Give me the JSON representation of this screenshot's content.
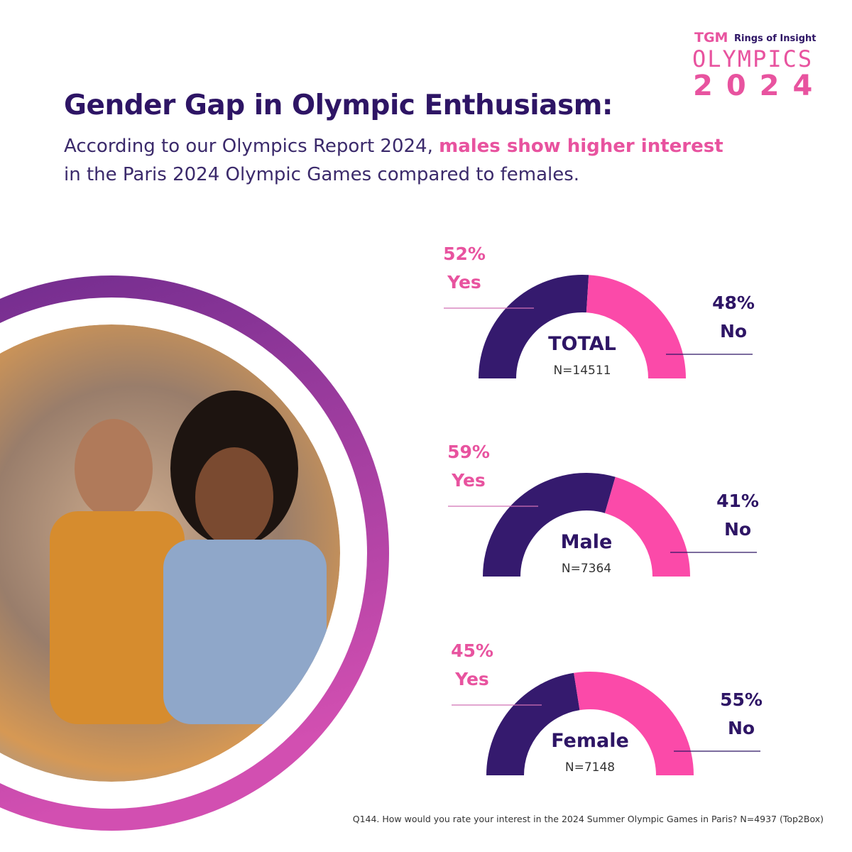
{
  "logo": {
    "brand": "TGM",
    "tagline": "Rings of Insight",
    "word": "OLYMPICS",
    "year": "2024"
  },
  "header": {
    "title": "Gender Gap in Olympic Enthusiasm:",
    "subtitle_pre": "According to our Olympics Report 2024, ",
    "subtitle_highlight": "males show higher interest",
    "subtitle_post": " in the Paris 2024 Olympic Games compared to females."
  },
  "colors": {
    "yes": "#351a6e",
    "no": "#fb4aa9",
    "accent": "#e8539f",
    "dark": "#2e1565"
  },
  "chart_data": {
    "type": "pie",
    "variant": "half-donut",
    "gauges": [
      {
        "label": "TOTAL",
        "n": "N=14511",
        "yes": 52,
        "no": 48,
        "yes_label": "52%",
        "yes_text": "Yes",
        "no_label": "48%",
        "no_text": "No"
      },
      {
        "label": "Male",
        "n": "N=7364",
        "yes": 59,
        "no": 41,
        "yes_label": "59%",
        "yes_text": "Yes",
        "no_label": "41%",
        "no_text": "No"
      },
      {
        "label": "Female",
        "n": "N=7148",
        "yes": 45,
        "no": 55,
        "yes_label": "45%",
        "yes_text": "Yes",
        "no_label": "55%",
        "no_text": "No"
      }
    ]
  },
  "image": {
    "icon": "photo-cheering-fans"
  },
  "footnote": "Q144. How would you rate your interest in the 2024 Summer Olympic Games in Paris? N=4937 (Top2Box)"
}
